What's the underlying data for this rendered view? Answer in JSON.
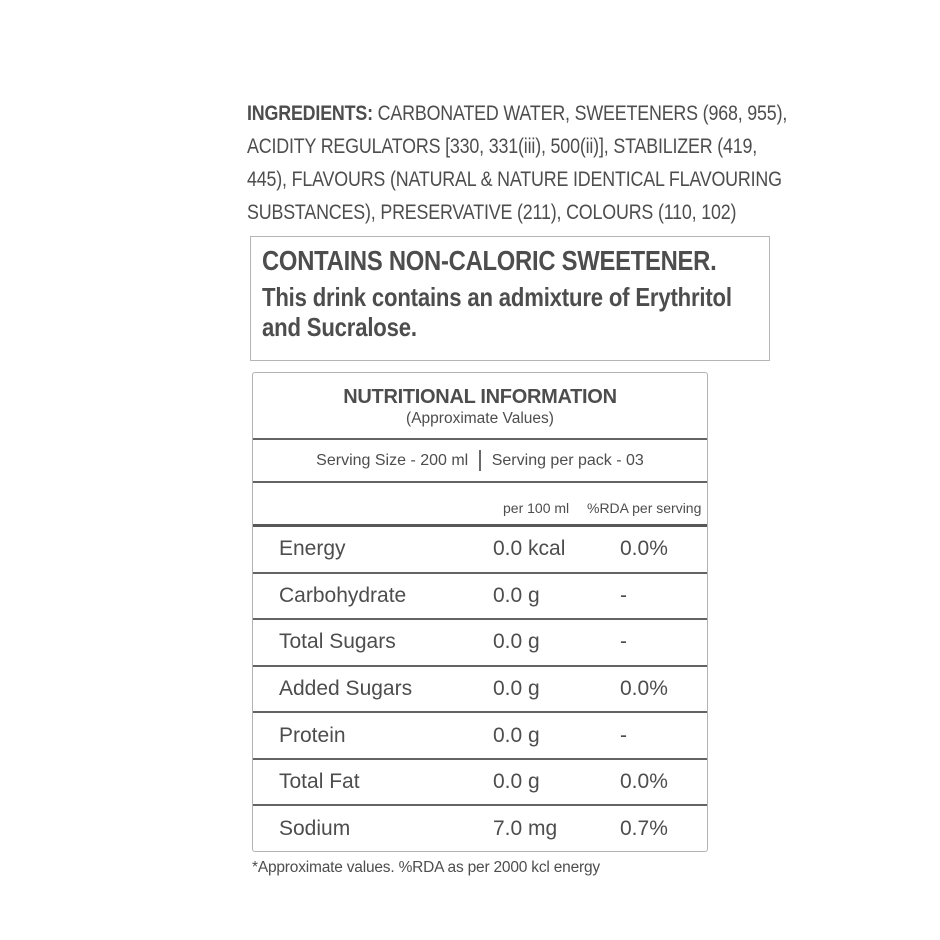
{
  "colors": {
    "background": "#ffffff",
    "text": "#4d4d4d",
    "table_rule": "#646464",
    "outer_border": "#b3b3b3"
  },
  "ingredients": {
    "label": "INGREDIENTS:",
    "line1": " CARBONATED WATER, SWEETENERS (968, 955),",
    "line2": "ACIDITY REGULATORS [330, 331(iii), 500(ii)], STABILIZER (419,",
    "line3": "445), FLAVOURS (NATURAL & NATURE IDENTICAL FLAVOURING",
    "line4": "SUBSTANCES), PRESERVATIVE (211), COLOURS (110, 102)"
  },
  "sweetener_box": {
    "title": "CONTAINS NON-CALORIC SWEETENER.",
    "line1": "This drink contains an admixture of Erythritol",
    "line2": "and Sucralose."
  },
  "nutrition_table": {
    "title": "NUTRITIONAL INFORMATION",
    "subtitle": "(Approximate Values)",
    "serving_size": "Serving Size - 200 ml",
    "serving_pack": "Serving per pack - 03",
    "col_per_100ml": "per 100 ml",
    "col_rda": "%RDA per serving",
    "rows": [
      {
        "nutrient": "Energy",
        "per_100ml": "0.0 kcal",
        "rda": "0.0%"
      },
      {
        "nutrient": "Carbohydrate",
        "per_100ml": "0.0 g",
        "rda": "-"
      },
      {
        "nutrient": "Total Sugars",
        "per_100ml": "0.0 g",
        "rda": "-"
      },
      {
        "nutrient": "Added Sugars",
        "per_100ml": "0.0 g",
        "rda": "0.0%"
      },
      {
        "nutrient": "Protein",
        "per_100ml": "0.0 g",
        "rda": "-"
      },
      {
        "nutrient": "Total Fat",
        "per_100ml": "0.0 g",
        "rda": "0.0%"
      },
      {
        "nutrient": "Sodium",
        "per_100ml": "7.0 mg",
        "rda": "0.7%"
      }
    ]
  },
  "footnote": "*Approximate values. %RDA as per 2000 kcl energy"
}
